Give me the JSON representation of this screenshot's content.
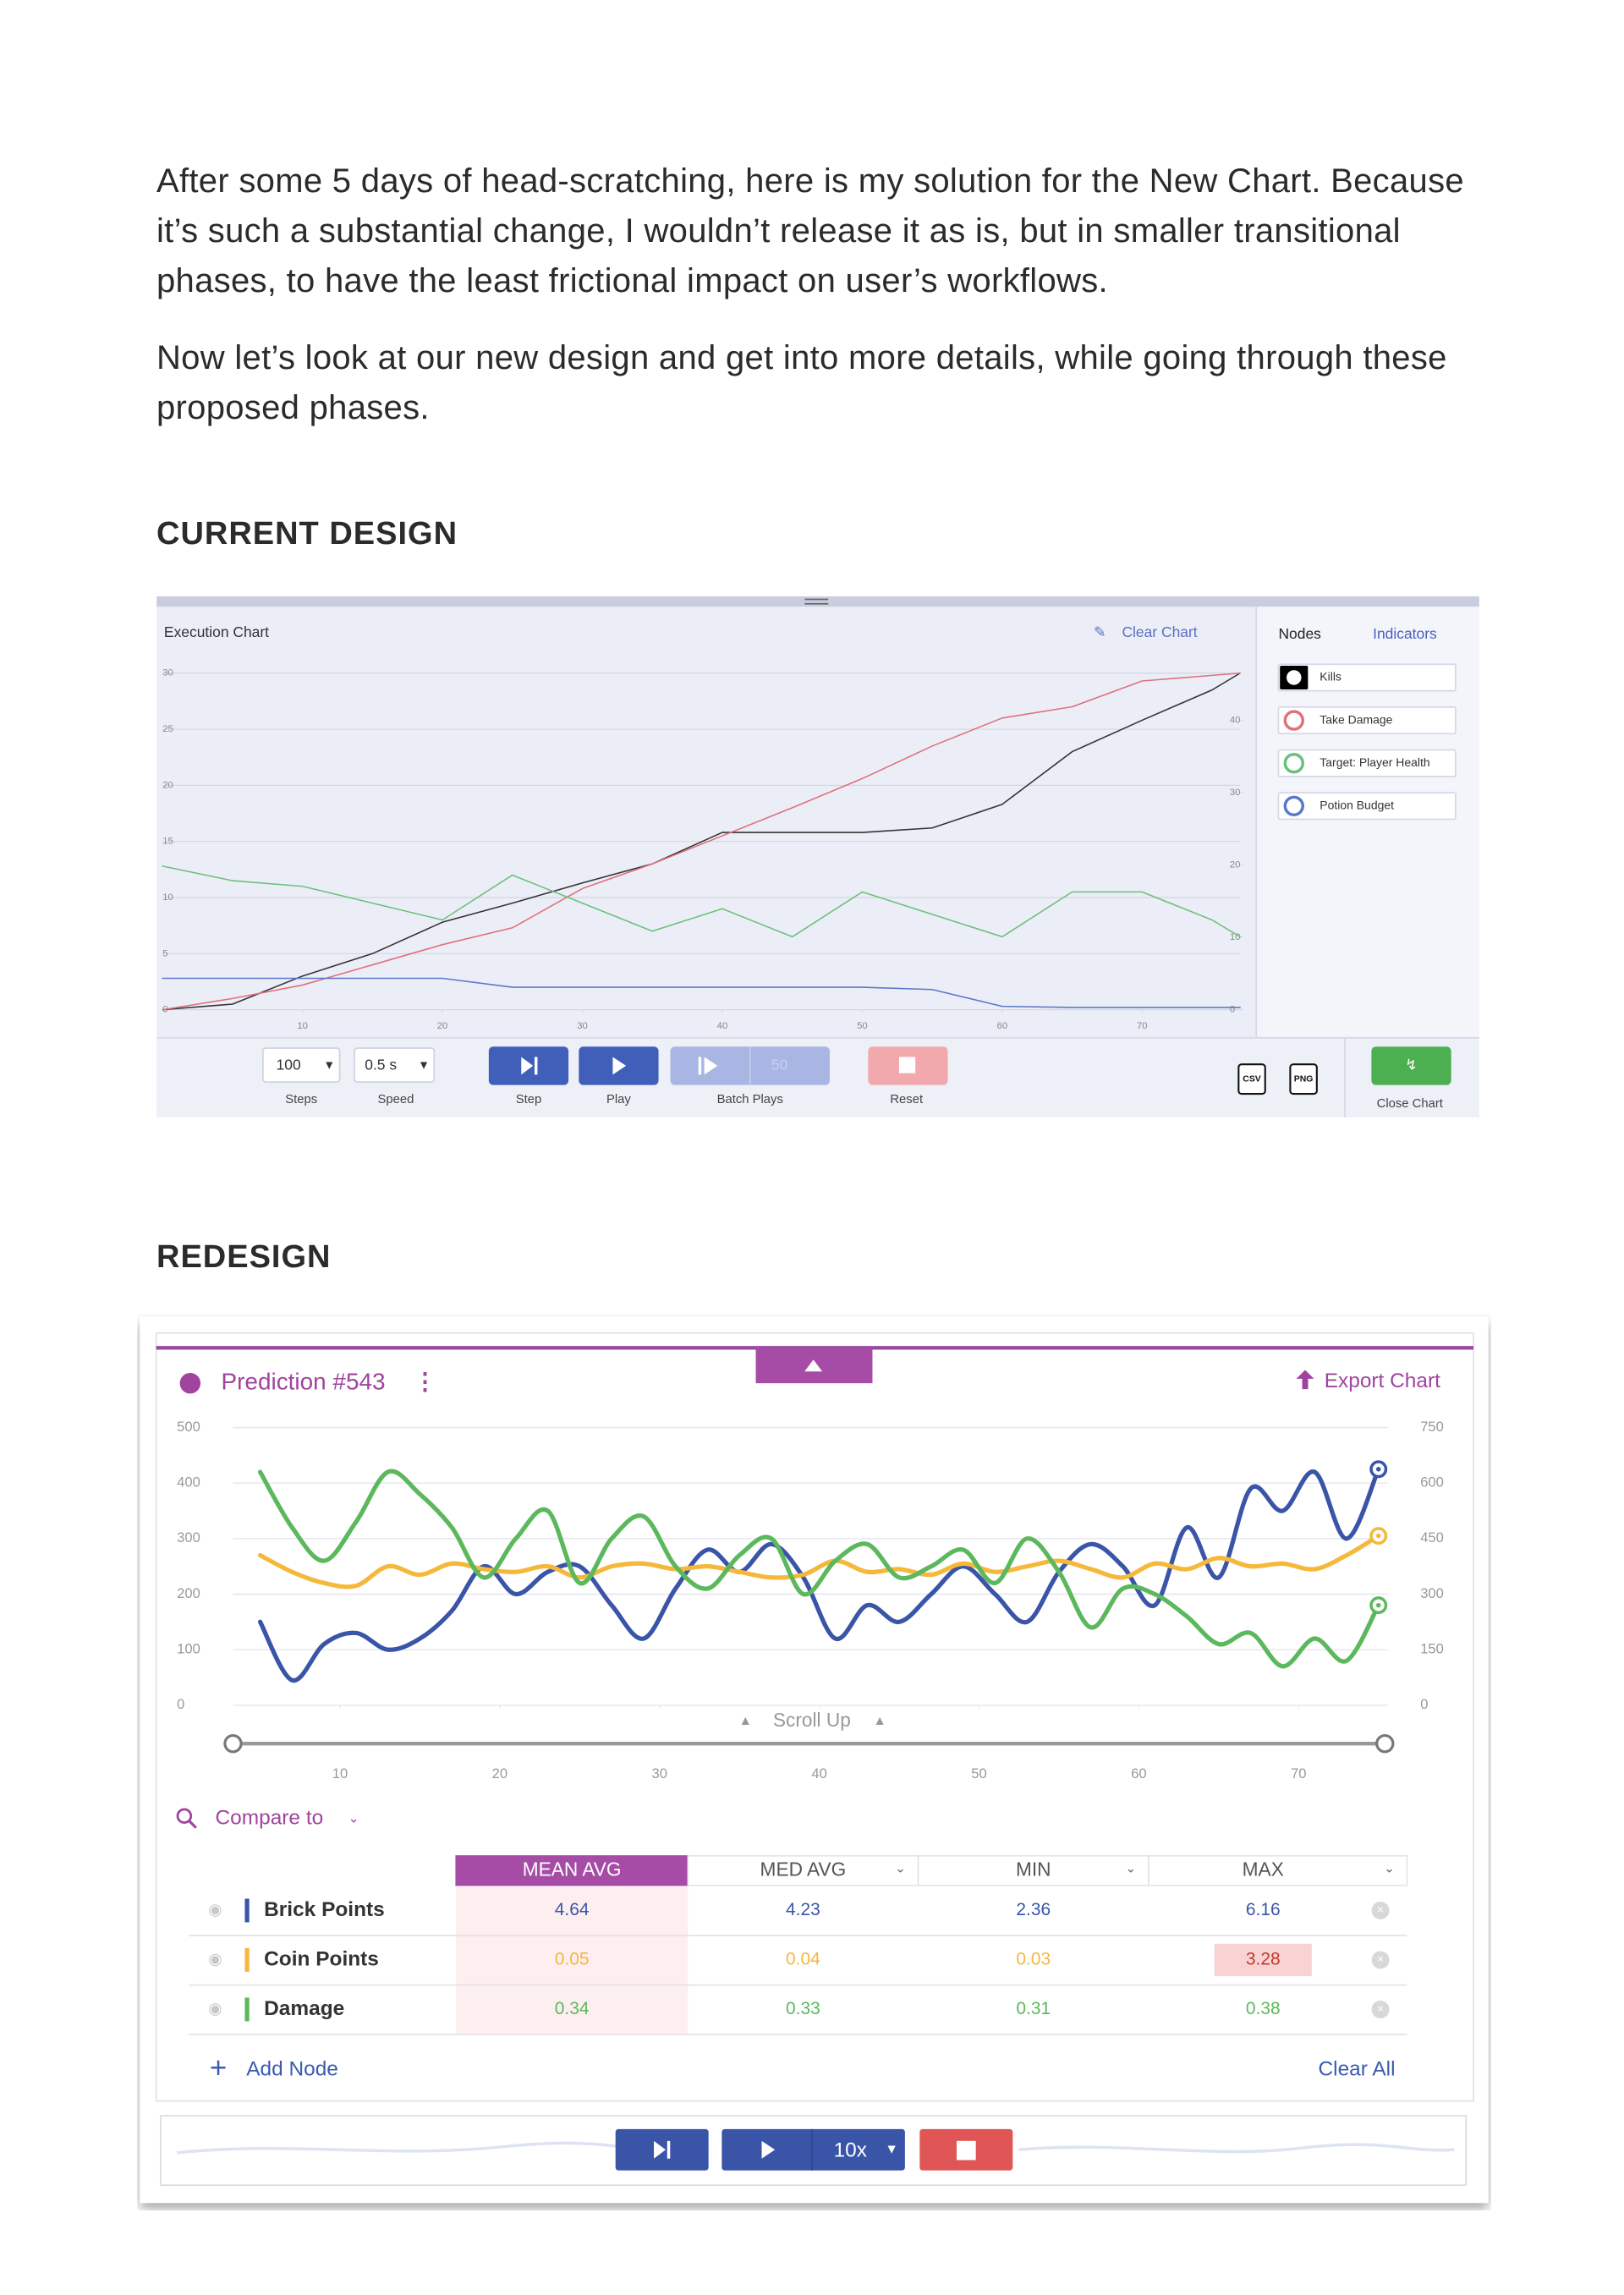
{
  "article": {
    "paragraphs": [
      "After some 5 days of head-scratching, here is my solution for the New Chart. Because it’s such a substantial change, I wouldn’t release it as is, but in smaller transitional phases, to have the least frictional impact on user’s workflows.",
      "Now let’s look at our new design and get into more details, while going through these proposed phases."
    ],
    "sections": [
      "CURRENT DESIGN",
      "REDESIGN"
    ]
  },
  "current_design": {
    "title": "Execution Chart",
    "clear_button": "Clear Chart",
    "tabs": [
      "Nodes",
      "Indicators"
    ],
    "chart": {
      "type": "line",
      "x": [
        0,
        5,
        10,
        15,
        20,
        25,
        30,
        35,
        40,
        45,
        50,
        55,
        60,
        65,
        70,
        75,
        77
      ],
      "xlim": [
        0,
        77
      ],
      "xticks": [
        10,
        20,
        30,
        40,
        50,
        60,
        70
      ],
      "ylim": [
        0,
        30
      ],
      "yticks": [
        0,
        5,
        10,
        15,
        20,
        25,
        30
      ],
      "y2lim": [
        0,
        46.5
      ],
      "y2ticks": [
        0,
        10,
        20,
        30,
        40
      ],
      "grid": true,
      "smooth": false,
      "series": [
        {
          "name": "Kills",
          "color": "#333333",
          "values": [
            0,
            0.5,
            3,
            5,
            7.8,
            9.5,
            11.3,
            13,
            15.8,
            15.8,
            15.8,
            16.2,
            18.3,
            23,
            25.8,
            28.5,
            30
          ]
        },
        {
          "name": "Take Damage",
          "color": "#e0707c",
          "values": [
            0,
            1,
            2.2,
            4,
            5.8,
            7.3,
            10.8,
            13,
            15.5,
            18,
            20.6,
            23.5,
            26,
            27,
            29.3,
            29.8,
            30
          ]
        },
        {
          "name": "Target: Player Health",
          "color": "#6cc07a",
          "values": [
            12.8,
            11.5,
            11,
            9.5,
            8,
            12,
            9.5,
            7,
            9,
            6.5,
            10.5,
            8.5,
            6.5,
            10.5,
            10.5,
            8,
            6.5
          ]
        },
        {
          "name": "Potion Budget",
          "color": "#5a78c8",
          "values": [
            2.8,
            2.8,
            2.8,
            2.8,
            2.8,
            2,
            2,
            2,
            2,
            2,
            2,
            1.8,
            0.3,
            0.2,
            0.2,
            0.2,
            0.2
          ]
        }
      ]
    },
    "controls": {
      "steps_value": "100",
      "steps_label": "Steps",
      "speed_value": "0.5 s",
      "speed_label": "Speed",
      "step": "Step",
      "play": "Play",
      "batch_count": "50",
      "batch_plays": "Batch Plays",
      "reset": "Reset",
      "csv": "CSV",
      "png": "PNG",
      "close_chart": "Close Chart"
    }
  },
  "redesign": {
    "title": "Prediction #543",
    "export": "Export Chart",
    "scroll_up": "Scroll Up",
    "chart": {
      "type": "line",
      "x": [
        5,
        7,
        9,
        11,
        13,
        15,
        17,
        19,
        21,
        23,
        25,
        27,
        29,
        31,
        33,
        35,
        37,
        39,
        41,
        43,
        45,
        47,
        49,
        51,
        53,
        55,
        57,
        59,
        61,
        63,
        65,
        67,
        69,
        71,
        73,
        75
      ],
      "xlim": [
        3.3,
        75.4
      ],
      "xticks": [
        10,
        20,
        30,
        40,
        50,
        60,
        70
      ],
      "ylim": [
        0,
        500
      ],
      "yticks": [
        0,
        100,
        200,
        300,
        400,
        500
      ],
      "y2lim": [
        0,
        750
      ],
      "y2ticks": [
        0,
        150,
        300,
        450,
        600,
        750
      ],
      "grid": true,
      "smooth": true,
      "series": [
        {
          "name": "Brick Points",
          "color": "#3a55a8",
          "values": [
            150,
            45,
            110,
            130,
            100,
            120,
            170,
            250,
            200,
            240,
            250,
            180,
            120,
            210,
            280,
            240,
            290,
            230,
            120,
            180,
            150,
            200,
            250,
            200,
            150,
            240,
            290,
            250,
            180,
            320,
            230,
            390,
            350,
            420,
            300,
            425
          ]
        },
        {
          "name": "Coin Points",
          "color": "#f5b83a",
          "values": [
            270,
            240,
            220,
            215,
            250,
            235,
            255,
            245,
            240,
            250,
            230,
            250,
            255,
            245,
            250,
            240,
            230,
            235,
            260,
            240,
            245,
            235,
            255,
            240,
            250,
            260,
            245,
            230,
            255,
            245,
            265,
            250,
            255,
            245,
            270,
            305
          ]
        },
        {
          "name": "Damage",
          "color": "#5cb85c",
          "values": [
            420,
            320,
            260,
            330,
            420,
            380,
            320,
            230,
            300,
            350,
            220,
            300,
            340,
            250,
            210,
            270,
            300,
            200,
            260,
            290,
            230,
            250,
            280,
            220,
            300,
            240,
            140,
            210,
            200,
            160,
            110,
            130,
            70,
            120,
            80,
            180
          ]
        }
      ]
    },
    "compare_to": "Compare to",
    "table": {
      "columns": [
        "MEAN AVG",
        "MED AVG",
        "MIN",
        "MAX"
      ],
      "selected_column": 0,
      "highlighted_cell": {
        "row": 1,
        "column": 3
      },
      "rows": [
        [
          4.64,
          4.23,
          2.36,
          6.16
        ],
        [
          0.05,
          0.04,
          0.03,
          3.28
        ],
        [
          0.34,
          0.33,
          0.31,
          0.38
        ]
      ]
    },
    "add_node": "Add Node",
    "clear_all": "Clear All",
    "speed": "10x"
  }
}
